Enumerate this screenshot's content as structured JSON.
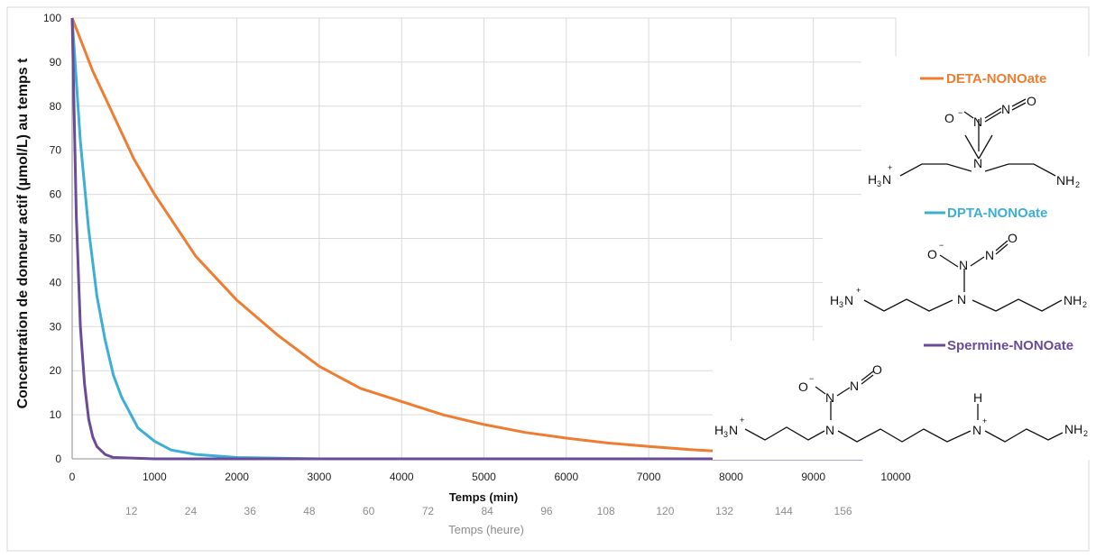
{
  "chart_data": {
    "type": "line",
    "ylabel": "Concentration  de donneur actif (µmol/L) au temps t",
    "xlabel": "Temps (min)",
    "xlabel2": "Temps (heure)",
    "xlim": [
      0,
      10000
    ],
    "ylim": [
      0,
      100
    ],
    "x_ticks": [
      0,
      1000,
      2000,
      3000,
      4000,
      5000,
      6000,
      7000,
      8000,
      9000,
      10000
    ],
    "y_ticks": [
      0,
      10,
      20,
      30,
      40,
      50,
      60,
      70,
      80,
      90,
      100
    ],
    "x2_ticks": [
      12,
      24,
      36,
      48,
      60,
      72,
      84,
      96,
      108,
      120,
      132,
      144,
      156
    ],
    "grid": true,
    "legend_position": "right",
    "series": [
      {
        "name": "DETA-NONOate",
        "color": "#ee7d31",
        "x": [
          0,
          250,
          500,
          750,
          1000,
          1500,
          2000,
          2500,
          3000,
          3500,
          4000,
          4500,
          5000,
          5500,
          6000,
          6500,
          7000,
          7500,
          8000,
          8500,
          9000,
          9600
        ],
        "y": [
          100,
          88,
          78,
          68,
          60,
          46,
          36,
          28,
          21,
          16,
          13,
          10,
          7.8,
          6,
          4.7,
          3.6,
          2.8,
          2.1,
          1.6,
          1.3,
          1,
          0.5
        ]
      },
      {
        "name": "DPTA-NONOate",
        "color": "#3daed4",
        "x": [
          0,
          100,
          200,
          300,
          400,
          500,
          600,
          800,
          1000,
          1200,
          1500,
          2000,
          3000,
          9600
        ],
        "y": [
          100,
          72,
          52,
          37,
          27,
          19,
          14,
          7,
          4,
          2,
          1,
          0.3,
          0,
          0
        ]
      },
      {
        "name": "Spermine-NONOate",
        "color": "#6a4b98",
        "x": [
          0,
          50,
          100,
          150,
          200,
          250,
          300,
          400,
          500,
          1000,
          9600
        ],
        "y": [
          100,
          55,
          30,
          17,
          9,
          5,
          2.8,
          1,
          0.3,
          0,
          0
        ]
      }
    ]
  },
  "structures": {
    "deta": {
      "o_minus": "O",
      "n_top": "N",
      "o_right": "O",
      "n_center": "N",
      "h3n": "H",
      "h3n_sub": "3",
      "h3n_n": "N",
      "plus": "+",
      "nh2": "NH",
      "nh2_sub": "2"
    },
    "dpta": {
      "o_minus": "O",
      "n_top": "N",
      "o_right": "O",
      "n_center": "N",
      "h3n": "H",
      "h3n_sub": "3",
      "h3n_n": "N",
      "plus": "+",
      "nh2": "NH",
      "nh2_sub": "2"
    },
    "spermine": {
      "o_minus": "O",
      "n_top": "N",
      "o_right": "O",
      "n_center": "N",
      "h3n": "H",
      "h3n_sub": "3",
      "h3n_n": "N",
      "plus": "+",
      "h": "H",
      "n_mid": "N",
      "nh2": "NH",
      "nh2_sub": "2"
    }
  }
}
